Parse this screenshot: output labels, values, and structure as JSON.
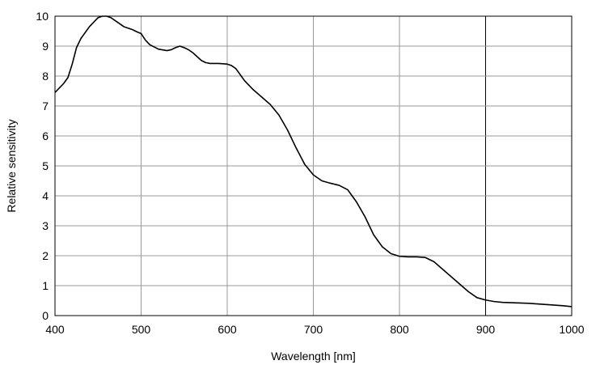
{
  "chart_data": {
    "type": "line",
    "title": "",
    "xlabel": "Wavelength [nm]",
    "ylabel": "Relative sensitivity",
    "xlim": [
      400,
      1000
    ],
    "ylim": [
      0,
      10
    ],
    "xticks": [
      400,
      500,
      600,
      700,
      800,
      900,
      1000
    ],
    "yticks": [
      0,
      1,
      2,
      3,
      4,
      5,
      6,
      7,
      8,
      9,
      10
    ],
    "grid": true,
    "legend": "none",
    "line_color": "#000000",
    "grid_color": "#9a9a9a",
    "series": [
      {
        "x": [
          400,
          410,
          415,
          420,
          425,
          430,
          440,
          450,
          455,
          460,
          465,
          470,
          480,
          490,
          495,
          500,
          505,
          510,
          520,
          530,
          535,
          540,
          545,
          550,
          555,
          560,
          570,
          575,
          580,
          590,
          600,
          605,
          610,
          620,
          630,
          640,
          650,
          660,
          670,
          680,
          690,
          700,
          710,
          720,
          730,
          740,
          750,
          760,
          770,
          780,
          790,
          800,
          810,
          820,
          830,
          840,
          850,
          860,
          870,
          880,
          890,
          900,
          910,
          920,
          930,
          940,
          950,
          960,
          970,
          980,
          990,
          1000
        ],
        "y": [
          7.45,
          7.75,
          7.95,
          8.4,
          8.95,
          9.25,
          9.65,
          9.95,
          10.0,
          10.0,
          9.95,
          9.85,
          9.65,
          9.55,
          9.48,
          9.42,
          9.2,
          9.05,
          8.9,
          8.85,
          8.88,
          8.95,
          9.0,
          8.95,
          8.88,
          8.78,
          8.52,
          8.45,
          8.42,
          8.42,
          8.4,
          8.35,
          8.25,
          7.85,
          7.55,
          7.3,
          7.05,
          6.7,
          6.2,
          5.6,
          5.05,
          4.7,
          4.5,
          4.42,
          4.35,
          4.2,
          3.8,
          3.3,
          2.7,
          2.3,
          2.07,
          1.98,
          1.96,
          1.96,
          1.94,
          1.8,
          1.55,
          1.3,
          1.05,
          0.8,
          0.6,
          0.52,
          0.47,
          0.44,
          0.43,
          0.42,
          0.41,
          0.39,
          0.37,
          0.35,
          0.33,
          0.3
        ]
      }
    ]
  }
}
